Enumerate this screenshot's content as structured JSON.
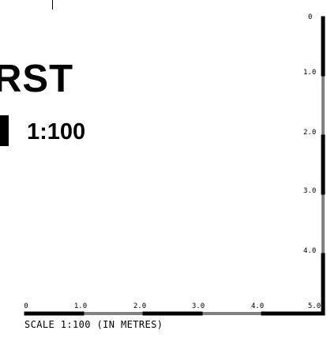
{
  "drawing": {
    "title_line1": "RST",
    "title_line2_scale": "1:100",
    "scale_note": "SCALE 1:100 (IN METRES)"
  },
  "horizontal_scale": {
    "labels": [
      "0",
      "1.0",
      "2.0",
      "3.0",
      "4.0",
      "5.0"
    ],
    "unit": "metres",
    "ratio": "1:100"
  },
  "vertical_scale": {
    "labels": [
      "0",
      "1.0",
      "2.0",
      "3.0",
      "4.0",
      "5.0"
    ],
    "unit": "metres",
    "ratio": "1:100"
  },
  "colors": {
    "ink": "#000000",
    "paper": "#ffffff"
  }
}
